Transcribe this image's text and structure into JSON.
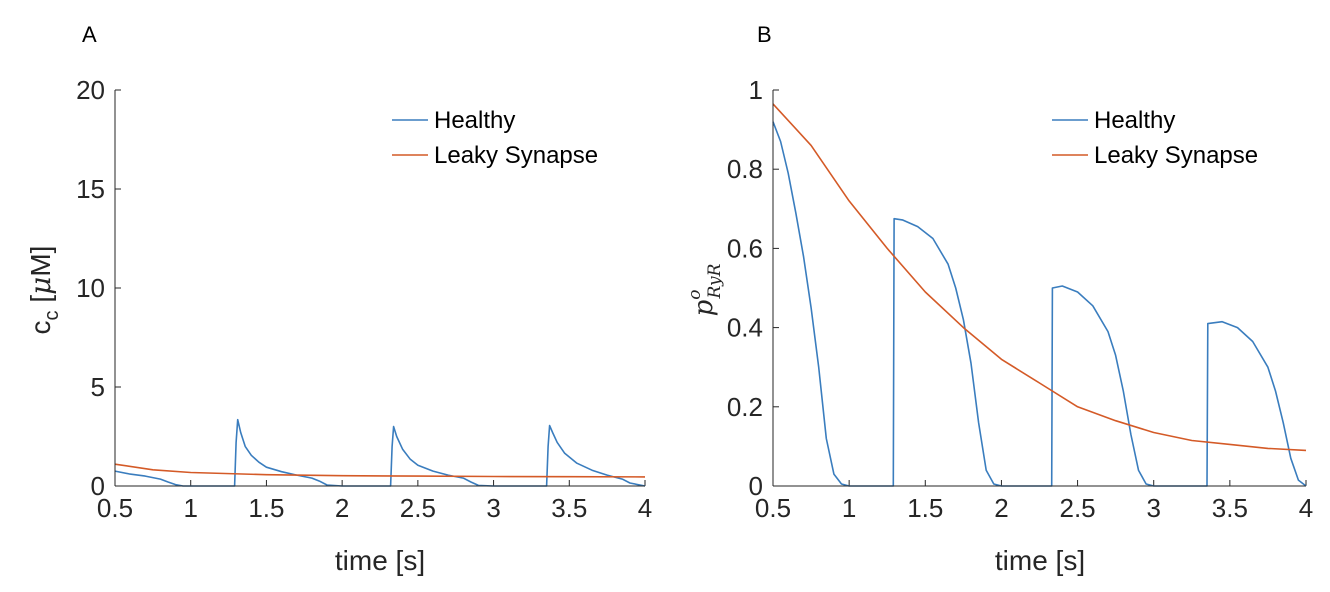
{
  "colors": {
    "healthy": "#3A7DBE",
    "leaky": "#D45A27",
    "axis": "#262626"
  },
  "chart_data": [
    {
      "panel": "A",
      "type": "line",
      "xlabel": "time [s]",
      "ylabel": {
        "main": "c",
        "subscript": "c",
        "rest": " [",
        "mu": "μ",
        "unit": "M]"
      },
      "xlim": [
        0.5,
        4
      ],
      "ylim": [
        0,
        20
      ],
      "xticks": [
        0.5,
        1,
        1.5,
        2,
        2.5,
        3,
        3.5,
        4
      ],
      "xtick_labels": [
        "0.5",
        "1",
        "1.5",
        "2",
        "2.5",
        "3",
        "3.5",
        "4"
      ],
      "yticks": [
        0,
        5,
        10,
        15,
        20
      ],
      "ytick_labels": [
        "0",
        "5",
        "10",
        "15",
        "20"
      ],
      "legend_position": "top-right",
      "series": [
        {
          "name": "Healthy",
          "x": [
            0.5,
            0.6,
            0.7,
            0.8,
            0.85,
            0.9,
            0.95,
            1.0,
            1.29,
            1.3,
            1.31,
            1.33,
            1.36,
            1.4,
            1.45,
            1.5,
            1.6,
            1.7,
            1.8,
            1.85,
            1.9,
            2.0,
            2.32,
            2.33,
            2.34,
            2.36,
            2.4,
            2.45,
            2.5,
            2.6,
            2.7,
            2.8,
            2.85,
            2.9,
            3.0,
            3.35,
            3.36,
            3.37,
            3.39,
            3.42,
            3.47,
            3.55,
            3.65,
            3.75,
            3.85,
            3.9,
            4.0
          ],
          "y": [
            0.75,
            0.6,
            0.5,
            0.35,
            0.2,
            0.07,
            0.0,
            0.0,
            0.0,
            2.2,
            3.35,
            2.7,
            2.0,
            1.55,
            1.2,
            0.95,
            0.72,
            0.55,
            0.4,
            0.25,
            0.05,
            0.0,
            0.0,
            2.0,
            3.0,
            2.5,
            1.85,
            1.35,
            1.05,
            0.75,
            0.55,
            0.4,
            0.2,
            0.03,
            0.0,
            0.0,
            2.0,
            3.05,
            2.7,
            2.2,
            1.65,
            1.15,
            0.8,
            0.55,
            0.35,
            0.15,
            0.0
          ]
        },
        {
          "name": "Leaky Synapse",
          "x": [
            0.5,
            0.75,
            1.0,
            1.5,
            2.0,
            2.5,
            3.0,
            3.5,
            4.0
          ],
          "y": [
            1.1,
            0.82,
            0.68,
            0.57,
            0.52,
            0.5,
            0.48,
            0.47,
            0.46
          ]
        }
      ]
    },
    {
      "panel": "B",
      "type": "line",
      "xlabel": "time [s]",
      "ylabel": {
        "base": "p",
        "superscript": "o",
        "subscript": "RyR"
      },
      "xlim": [
        0.5,
        4
      ],
      "ylim": [
        0,
        1
      ],
      "xticks": [
        0.5,
        1,
        1.5,
        2,
        2.5,
        3,
        3.5,
        4
      ],
      "xtick_labels": [
        "0.5",
        "1",
        "1.5",
        "2",
        "2.5",
        "3",
        "3.5",
        "4"
      ],
      "yticks": [
        0,
        0.2,
        0.4,
        0.6,
        0.8,
        1
      ],
      "ytick_labels": [
        "0",
        "0.2",
        "0.4",
        "0.6",
        "0.8",
        "1"
      ],
      "legend_position": "top-right",
      "series": [
        {
          "name": "Healthy",
          "x": [
            0.5,
            0.55,
            0.6,
            0.65,
            0.7,
            0.75,
            0.8,
            0.85,
            0.9,
            0.95,
            1.0,
            1.29,
            1.295,
            1.35,
            1.45,
            1.55,
            1.65,
            1.7,
            1.75,
            1.8,
            1.85,
            1.9,
            1.95,
            2.0,
            2.33,
            2.335,
            2.4,
            2.5,
            2.6,
            2.7,
            2.75,
            2.8,
            2.85,
            2.9,
            2.95,
            3.0,
            3.35,
            3.355,
            3.45,
            3.55,
            3.65,
            3.75,
            3.8,
            3.85,
            3.9,
            3.95,
            4.0
          ],
          "y": [
            0.92,
            0.87,
            0.79,
            0.69,
            0.58,
            0.45,
            0.3,
            0.12,
            0.03,
            0.005,
            0.0,
            0.0,
            0.675,
            0.672,
            0.655,
            0.625,
            0.56,
            0.5,
            0.42,
            0.31,
            0.16,
            0.04,
            0.005,
            0.0,
            0.0,
            0.5,
            0.505,
            0.49,
            0.455,
            0.39,
            0.33,
            0.24,
            0.13,
            0.04,
            0.005,
            0.0,
            0.0,
            0.41,
            0.415,
            0.4,
            0.365,
            0.3,
            0.24,
            0.16,
            0.07,
            0.015,
            0.0
          ]
        },
        {
          "name": "Leaky Synapse",
          "x": [
            0.5,
            0.75,
            1.0,
            1.25,
            1.5,
            1.75,
            2.0,
            2.25,
            2.5,
            2.75,
            3.0,
            3.25,
            3.5,
            3.75,
            4.0
          ],
          "y": [
            0.965,
            0.86,
            0.72,
            0.6,
            0.49,
            0.4,
            0.32,
            0.26,
            0.2,
            0.165,
            0.135,
            0.115,
            0.105,
            0.095,
            0.09
          ]
        }
      ]
    }
  ]
}
